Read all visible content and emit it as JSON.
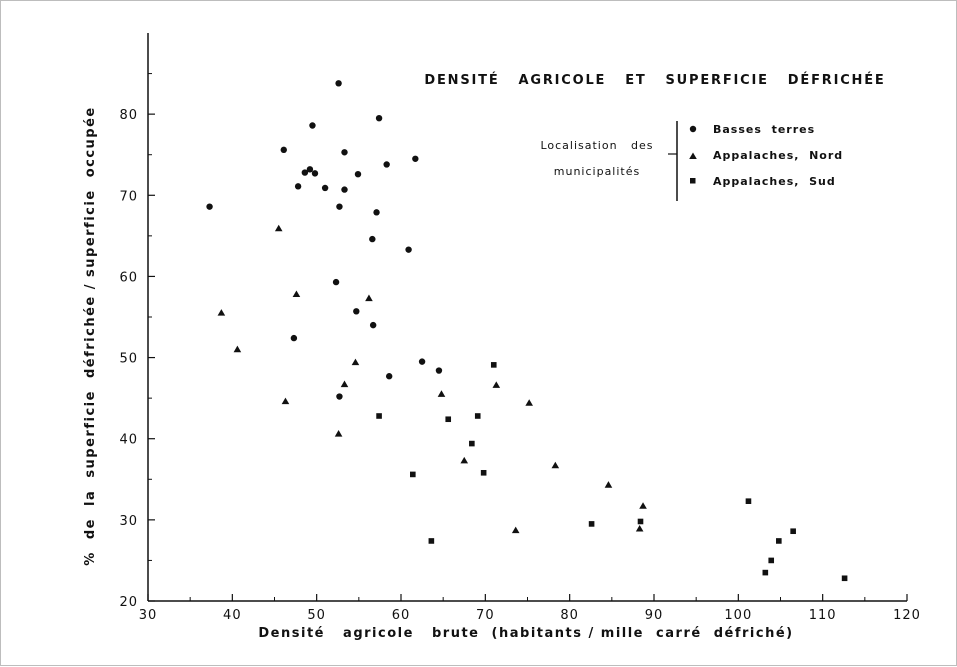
{
  "chart_data": {
    "type": "scatter",
    "title": "DENSITÉ   AGRICOLE   ET   SUPERFICIE   DÉFRICHÉE",
    "xlabel": "Densité   agricole   brute  (habitants / mille  carré  défriché)",
    "ylabel": "%  de  la  superficie  défrichée / superficie  occupée",
    "xlim": [
      30,
      120
    ],
    "ylim": [
      20,
      90
    ],
    "xticks": [
      30,
      40,
      50,
      60,
      70,
      80,
      90,
      100,
      110,
      120
    ],
    "yticks": [
      20,
      30,
      40,
      50,
      60,
      70,
      80
    ],
    "grid": false,
    "legend": {
      "heading_line1": "Localisation   des",
      "heading_line2": "municipalités",
      "placement": "top-right"
    },
    "series": [
      {
        "name": "Basses  terres",
        "marker": "circle",
        "points": [
          [
            37.3,
            68.6
          ],
          [
            46.1,
            75.6
          ],
          [
            47.3,
            52.4
          ],
          [
            47.8,
            71.1
          ],
          [
            48.6,
            72.8
          ],
          [
            49.2,
            73.2
          ],
          [
            49.5,
            78.6
          ],
          [
            49.8,
            72.7
          ],
          [
            51.0,
            70.9
          ],
          [
            52.3,
            59.3
          ],
          [
            52.6,
            83.8
          ],
          [
            52.7,
            68.6
          ],
          [
            52.7,
            45.2
          ],
          [
            53.3,
            70.7
          ],
          [
            53.3,
            75.3
          ],
          [
            54.7,
            55.7
          ],
          [
            54.9,
            72.6
          ],
          [
            56.6,
            64.6
          ],
          [
            56.7,
            54.0
          ],
          [
            57.1,
            67.9
          ],
          [
            57.4,
            79.5
          ],
          [
            58.3,
            73.8
          ],
          [
            58.6,
            47.7
          ],
          [
            60.9,
            63.3
          ],
          [
            61.7,
            74.5
          ],
          [
            62.5,
            49.5
          ],
          [
            64.5,
            48.4
          ]
        ]
      },
      {
        "name": "Appalaches,  Nord",
        "marker": "triangle",
        "points": [
          [
            38.7,
            55.5
          ],
          [
            40.6,
            51.0
          ],
          [
            45.5,
            65.9
          ],
          [
            46.3,
            44.6
          ],
          [
            47.6,
            57.8
          ],
          [
            52.6,
            40.6
          ],
          [
            53.3,
            46.7
          ],
          [
            54.6,
            49.4
          ],
          [
            56.2,
            57.3
          ],
          [
            64.8,
            45.5
          ],
          [
            67.5,
            37.3
          ],
          [
            71.3,
            46.6
          ],
          [
            73.6,
            28.7
          ],
          [
            75.2,
            44.4
          ],
          [
            78.3,
            36.7
          ],
          [
            84.6,
            34.3
          ],
          [
            88.3,
            28.9
          ],
          [
            88.7,
            31.7
          ]
        ]
      },
      {
        "name": "Appalaches,  Sud",
        "marker": "square",
        "points": [
          [
            57.4,
            42.8
          ],
          [
            61.4,
            35.6
          ],
          [
            63.6,
            27.4
          ],
          [
            65.6,
            42.4
          ],
          [
            68.4,
            39.4
          ],
          [
            69.1,
            42.8
          ],
          [
            69.8,
            35.8
          ],
          [
            71.0,
            49.1
          ],
          [
            82.6,
            29.5
          ],
          [
            88.4,
            29.8
          ],
          [
            101.2,
            32.3
          ],
          [
            103.2,
            23.5
          ],
          [
            103.9,
            25.0
          ],
          [
            104.8,
            27.4
          ],
          [
            106.5,
            28.6
          ],
          [
            112.6,
            22.8
          ]
        ]
      }
    ]
  }
}
